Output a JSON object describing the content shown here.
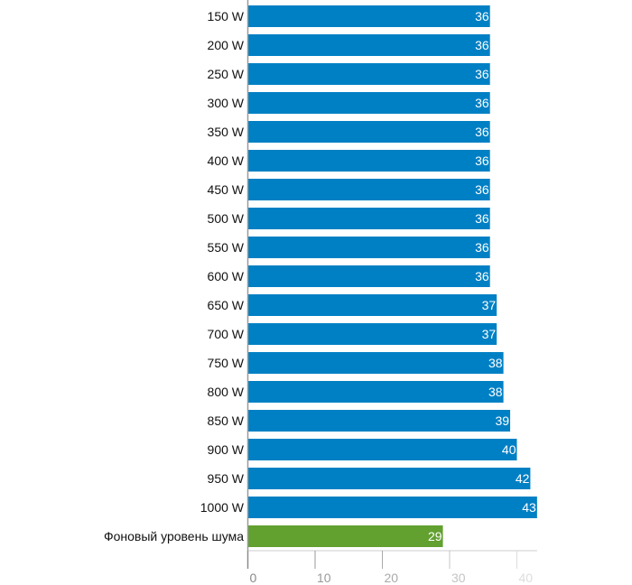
{
  "chart_data": {
    "type": "bar",
    "orientation": "horizontal",
    "categories": [
      "150 W",
      "200 W",
      "250 W",
      "300 W",
      "350 W",
      "400 W",
      "450 W",
      "500 W",
      "550 W",
      "600 W",
      "650 W",
      "700 W",
      "750 W",
      "800 W",
      "850 W",
      "900 W",
      "950 W",
      "1000 W",
      "Фоновый уровень шума"
    ],
    "values": [
      36,
      36,
      36,
      36,
      36,
      36,
      36,
      36,
      36,
      36,
      37,
      37,
      38,
      38,
      39,
      40,
      42,
      43,
      29
    ],
    "colors": [
      "#0080c4",
      "#0080c4",
      "#0080c4",
      "#0080c4",
      "#0080c4",
      "#0080c4",
      "#0080c4",
      "#0080c4",
      "#0080c4",
      "#0080c4",
      "#0080c4",
      "#0080c4",
      "#0080c4",
      "#0080c4",
      "#0080c4",
      "#0080c4",
      "#0080c4",
      "#0080c4",
      "#62a030"
    ],
    "xticks": [
      0,
      10,
      20,
      30,
      40
    ],
    "xlim": [
      0,
      43
    ],
    "title": "",
    "xlabel": "",
    "ylabel": "",
    "grid": false
  }
}
